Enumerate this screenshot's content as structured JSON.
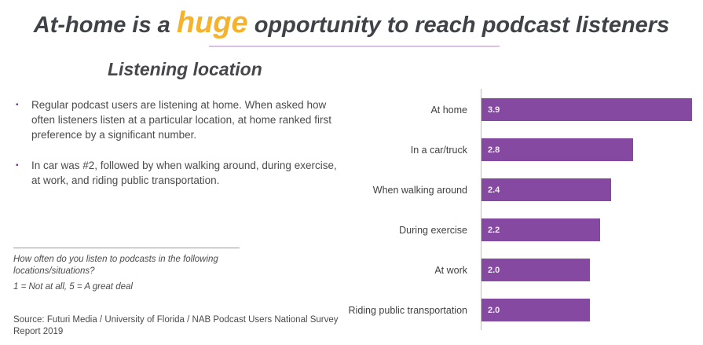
{
  "slide": {
    "title": {
      "pre": "At-home is a ",
      "highlight": "huge",
      "post": " opportunity to reach podcast listeners"
    },
    "section_heading": "Listening location",
    "bullets": [
      "Regular podcast users are listening at home. When asked how often listeners listen at a particular location, at home ranked first preference by a significant number.",
      "In car was #2, followed by when walking around, during exercise, at work, and riding public transportation."
    ],
    "footnote": {
      "question": "How often do you listen to podcasts in the following locations/situations?",
      "scale": "1 = Not at all, 5 = A great deal"
    },
    "source": "Source: Futuri Media / University of Florida / NAB Podcast Users National Survey Report 2019"
  },
  "colors": {
    "title_text": "#3f4347",
    "highlight_gold": "#f5b32c",
    "bar_purple": "#8549a1",
    "bullet_purple": "#7b3f98",
    "title_divider_lavender": "#dcc0e6",
    "axis_gray": "#bdbdbd"
  },
  "chart_data": {
    "type": "bar",
    "orientation": "horizontal",
    "title": "Listening location",
    "categories": [
      "At home",
      "In a car/truck",
      "When walking around",
      "During exercise",
      "At work",
      "Riding public transportation"
    ],
    "values": [
      3.9,
      2.8,
      2.4,
      2.2,
      2.0,
      2.0
    ],
    "value_labels": [
      "3.9",
      "2.8",
      "2.4",
      "2.2",
      "2.0",
      "2.0"
    ],
    "xlim": [
      0,
      4.1
    ],
    "bar_color": "#8549a1",
    "value_label_position": "inside-left",
    "grid": false,
    "legend": false,
    "scale_note": "1 = Not at all, 5 = A great deal"
  }
}
